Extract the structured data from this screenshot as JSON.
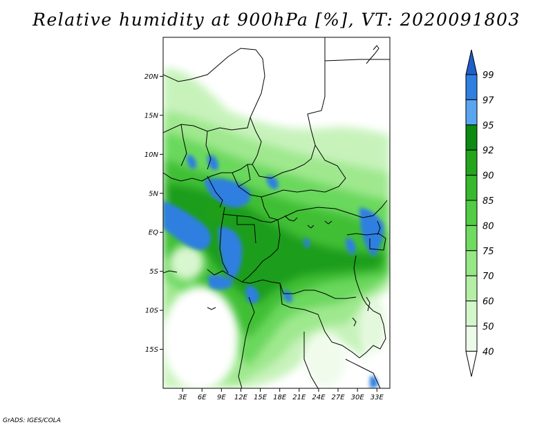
{
  "title": "Relative humidity at 900hPa [%], VT: 2020091803",
  "credit": "GrADS: IGES/COLA",
  "map": {
    "variable": "Relative humidity",
    "level": "900hPa",
    "units": "%",
    "valid_time": "2020091803",
    "lon_range_deg": [
      0,
      35
    ],
    "lat_range_deg": [
      -20,
      25
    ],
    "lat_ticks": [
      {
        "value": 20,
        "label": "20N"
      },
      {
        "value": 15,
        "label": "15N"
      },
      {
        "value": 10,
        "label": "10N"
      },
      {
        "value": 5,
        "label": "5N"
      },
      {
        "value": 0,
        "label": "EQ"
      },
      {
        "value": -5,
        "label": "5S"
      },
      {
        "value": -10,
        "label": "10S"
      },
      {
        "value": -15,
        "label": "15S"
      }
    ],
    "lon_ticks": [
      {
        "value": 3,
        "label": "3E"
      },
      {
        "value": 6,
        "label": "6E"
      },
      {
        "value": 9,
        "label": "9E"
      },
      {
        "value": 12,
        "label": "12E"
      },
      {
        "value": 15,
        "label": "15E"
      },
      {
        "value": 18,
        "label": "18E"
      },
      {
        "value": 21,
        "label": "21E"
      },
      {
        "value": 24,
        "label": "24E"
      },
      {
        "value": 27,
        "label": "27E"
      },
      {
        "value": 30,
        "label": "30E"
      },
      {
        "value": 33,
        "label": "33E"
      }
    ]
  },
  "colorbar": {
    "labels": [
      "99",
      "97",
      "95",
      "92",
      "90",
      "85",
      "80",
      "75",
      "70",
      "60",
      "50",
      "40"
    ],
    "colors": [
      "#1f5fc8",
      "#2f7fe0",
      "#5aa5f0",
      "#0d8a12",
      "#23a51c",
      "#38b82c",
      "#52cc44",
      "#6fdb60",
      "#95e884",
      "#b5efa6",
      "#d3f6cb",
      "#ecfbe8",
      "#ffffff"
    ]
  }
}
